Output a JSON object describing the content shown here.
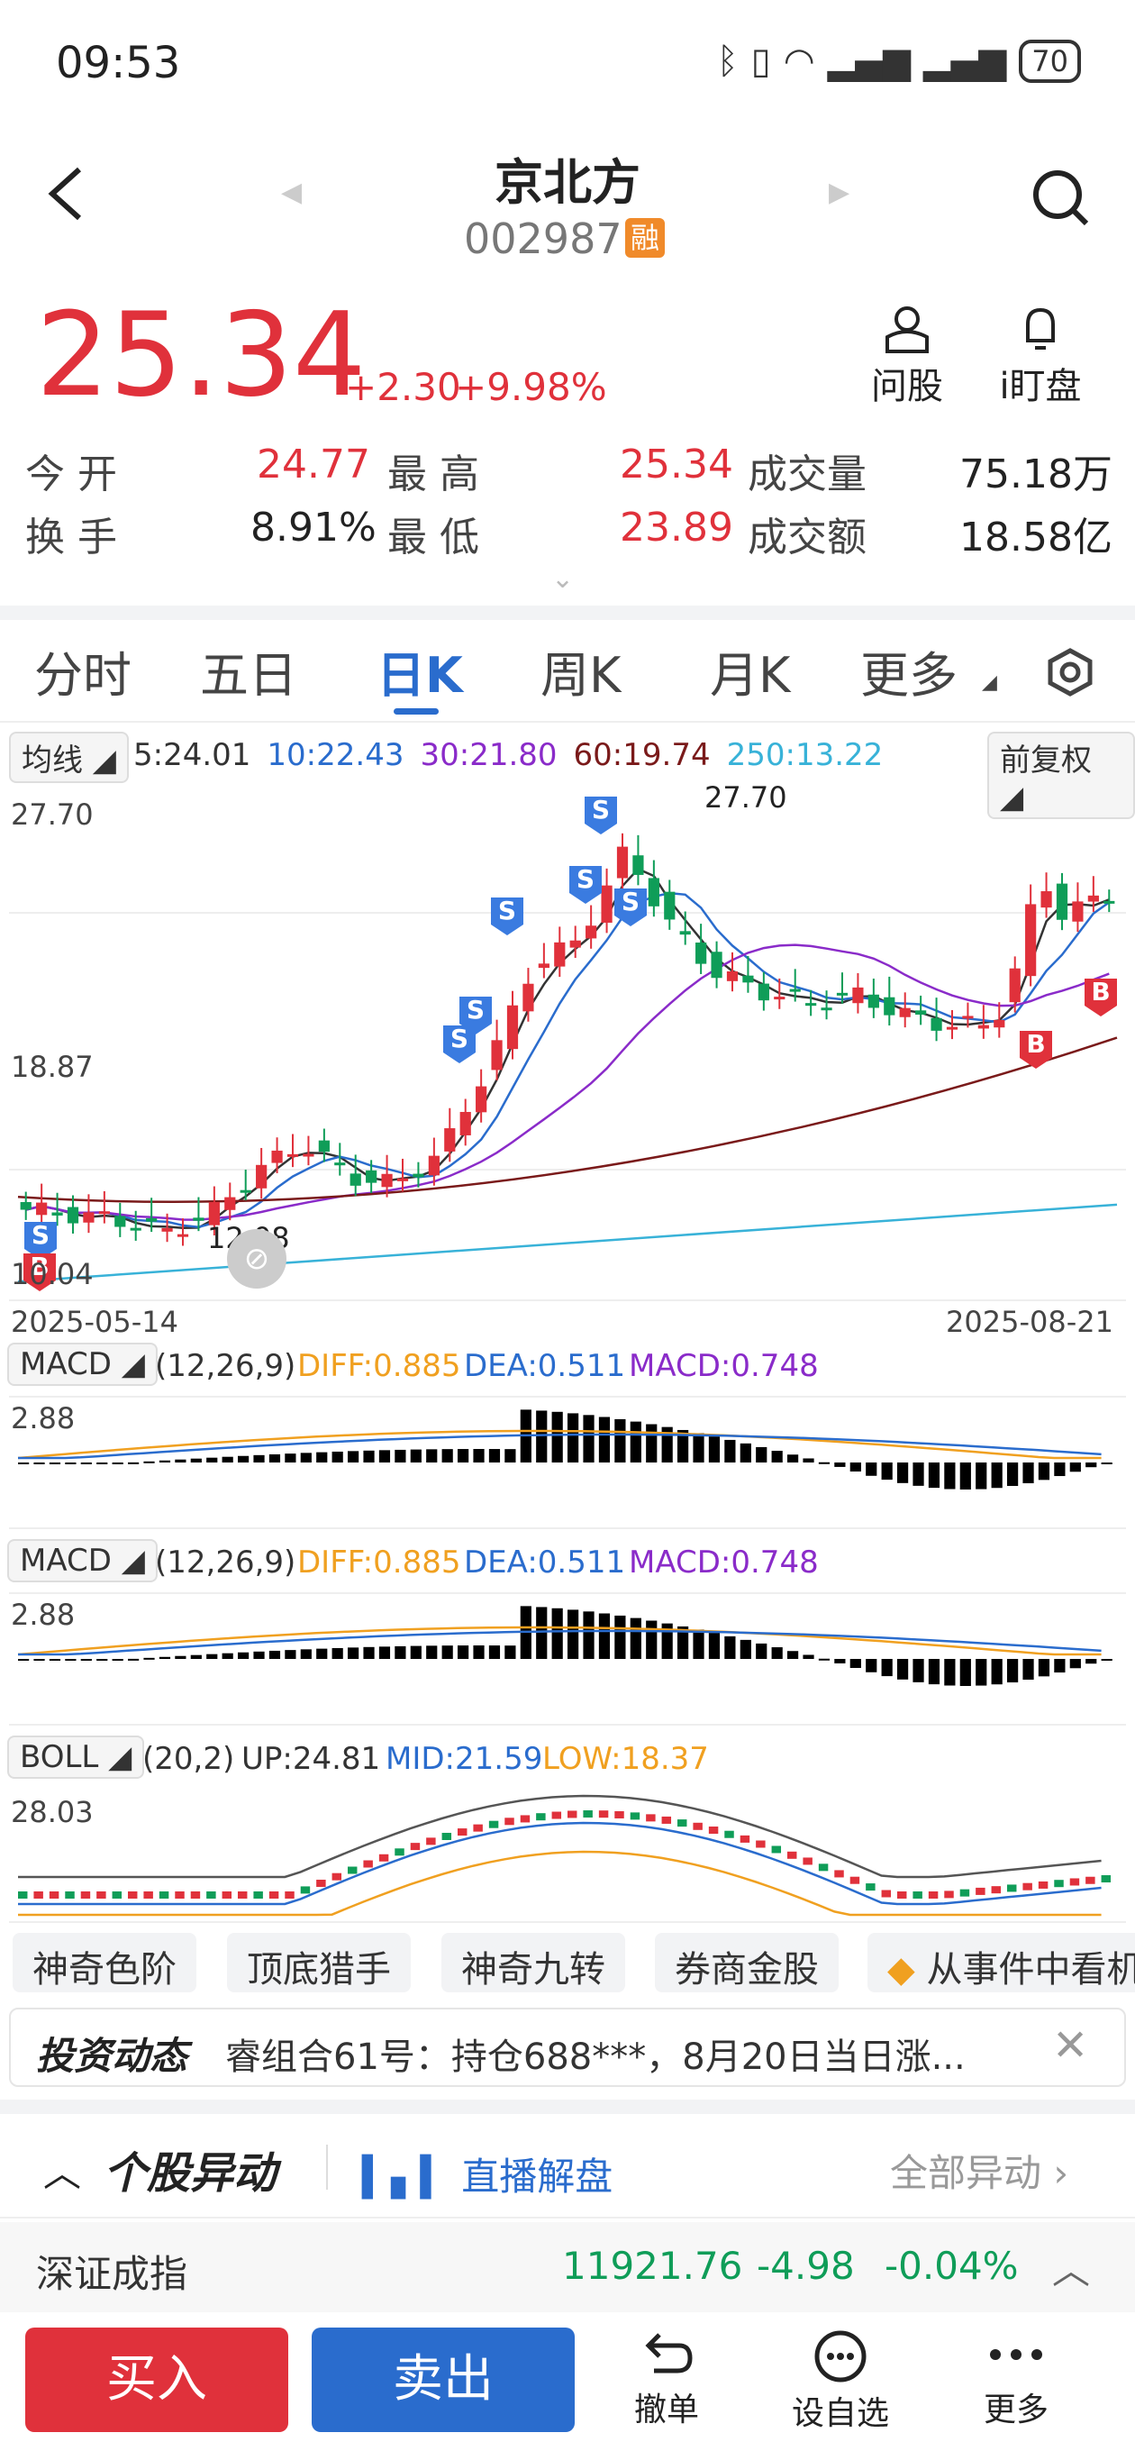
{
  "status": {
    "time": "09:53",
    "battery": "70",
    "icons": [
      "bluetooth-icon",
      "vibrate-icon",
      "wifi-icon",
      "signal-icon",
      "signal-icon"
    ]
  },
  "header": {
    "name": "京北方",
    "code": "002987",
    "badge": "融",
    "actions": [
      {
        "label": "问股",
        "icon": "person-icon"
      },
      {
        "label": "i盯盘",
        "icon": "bell-icon"
      }
    ]
  },
  "quote": {
    "price": "25.34",
    "change": "+2.30",
    "change_pct": "+9.98%",
    "stats": [
      {
        "label": "今  开",
        "value": "24.77"
      },
      {
        "label": "最  高",
        "value": "25.34"
      },
      {
        "label": "成交量",
        "value": "75.18万"
      },
      {
        "label": "换  手",
        "value": "8.91%"
      },
      {
        "label": "最  低",
        "value": "23.89"
      },
      {
        "label": "成交额",
        "value": "18.58亿"
      }
    ]
  },
  "tabs": [
    "分时",
    "五日",
    "日K",
    "周K",
    "月K",
    "更多"
  ],
  "active_tab": "日K",
  "ma": {
    "label": "均线",
    "items": [
      {
        "text": "5:24.01",
        "color": "#333333"
      },
      {
        "text": "10:22.43",
        "color": "#2a6ccd"
      },
      {
        "text": "30:21.80",
        "color": "#8a2bc9"
      },
      {
        "text": "60:19.74",
        "color": "#7a1a1a"
      },
      {
        "text": "250:13.22",
        "color": "#38b2d8"
      }
    ],
    "adjust": "前复权"
  },
  "kline": {
    "top": "27.70",
    "mid": "18.87",
    "bottom": "10.04",
    "high_mark": "27.70",
    "low_mark": "12.08",
    "date_start": "2025-05-14",
    "date_end": "2025-08-21",
    "signals": {
      "buy": "B",
      "sell": "S"
    }
  },
  "macd": {
    "label": "MACD",
    "params": "(12,26,9)",
    "diff": "DIFF:0.885",
    "dea": "DEA:0.511",
    "macd": "MACD:0.748",
    "axis": "2.88"
  },
  "boll": {
    "label": "BOLL",
    "params": "(20,2)",
    "up": "UP:24.81",
    "mid": "MID:21.59",
    "low": "LOW:18.37",
    "axis": "28.03"
  },
  "chips": [
    "神奇色阶",
    "顶底猎手",
    "神奇九转",
    "券商金股",
    "从事件中看机"
  ],
  "news": {
    "title": "投资动态",
    "text": "睿组合61号：持仓688***，8月20日当日涨..."
  },
  "abnormal": {
    "title": "个股异动",
    "live": "直播解盘",
    "all": "全部异动"
  },
  "index": {
    "name": "深证成指",
    "value": "11921.76",
    "change": "-4.98",
    "pct": "-0.04%"
  },
  "bottom": {
    "buy": "买入",
    "sell": "卖出",
    "actions": [
      {
        "label": "撤单",
        "icon": "undo-icon"
      },
      {
        "label": "设自选",
        "icon": "chat-icon"
      },
      {
        "label": "更多",
        "icon": "more-icon"
      }
    ]
  },
  "colors": {
    "up": "#e0313b",
    "down": "#0f9d58",
    "accent": "#2a6ccd"
  }
}
